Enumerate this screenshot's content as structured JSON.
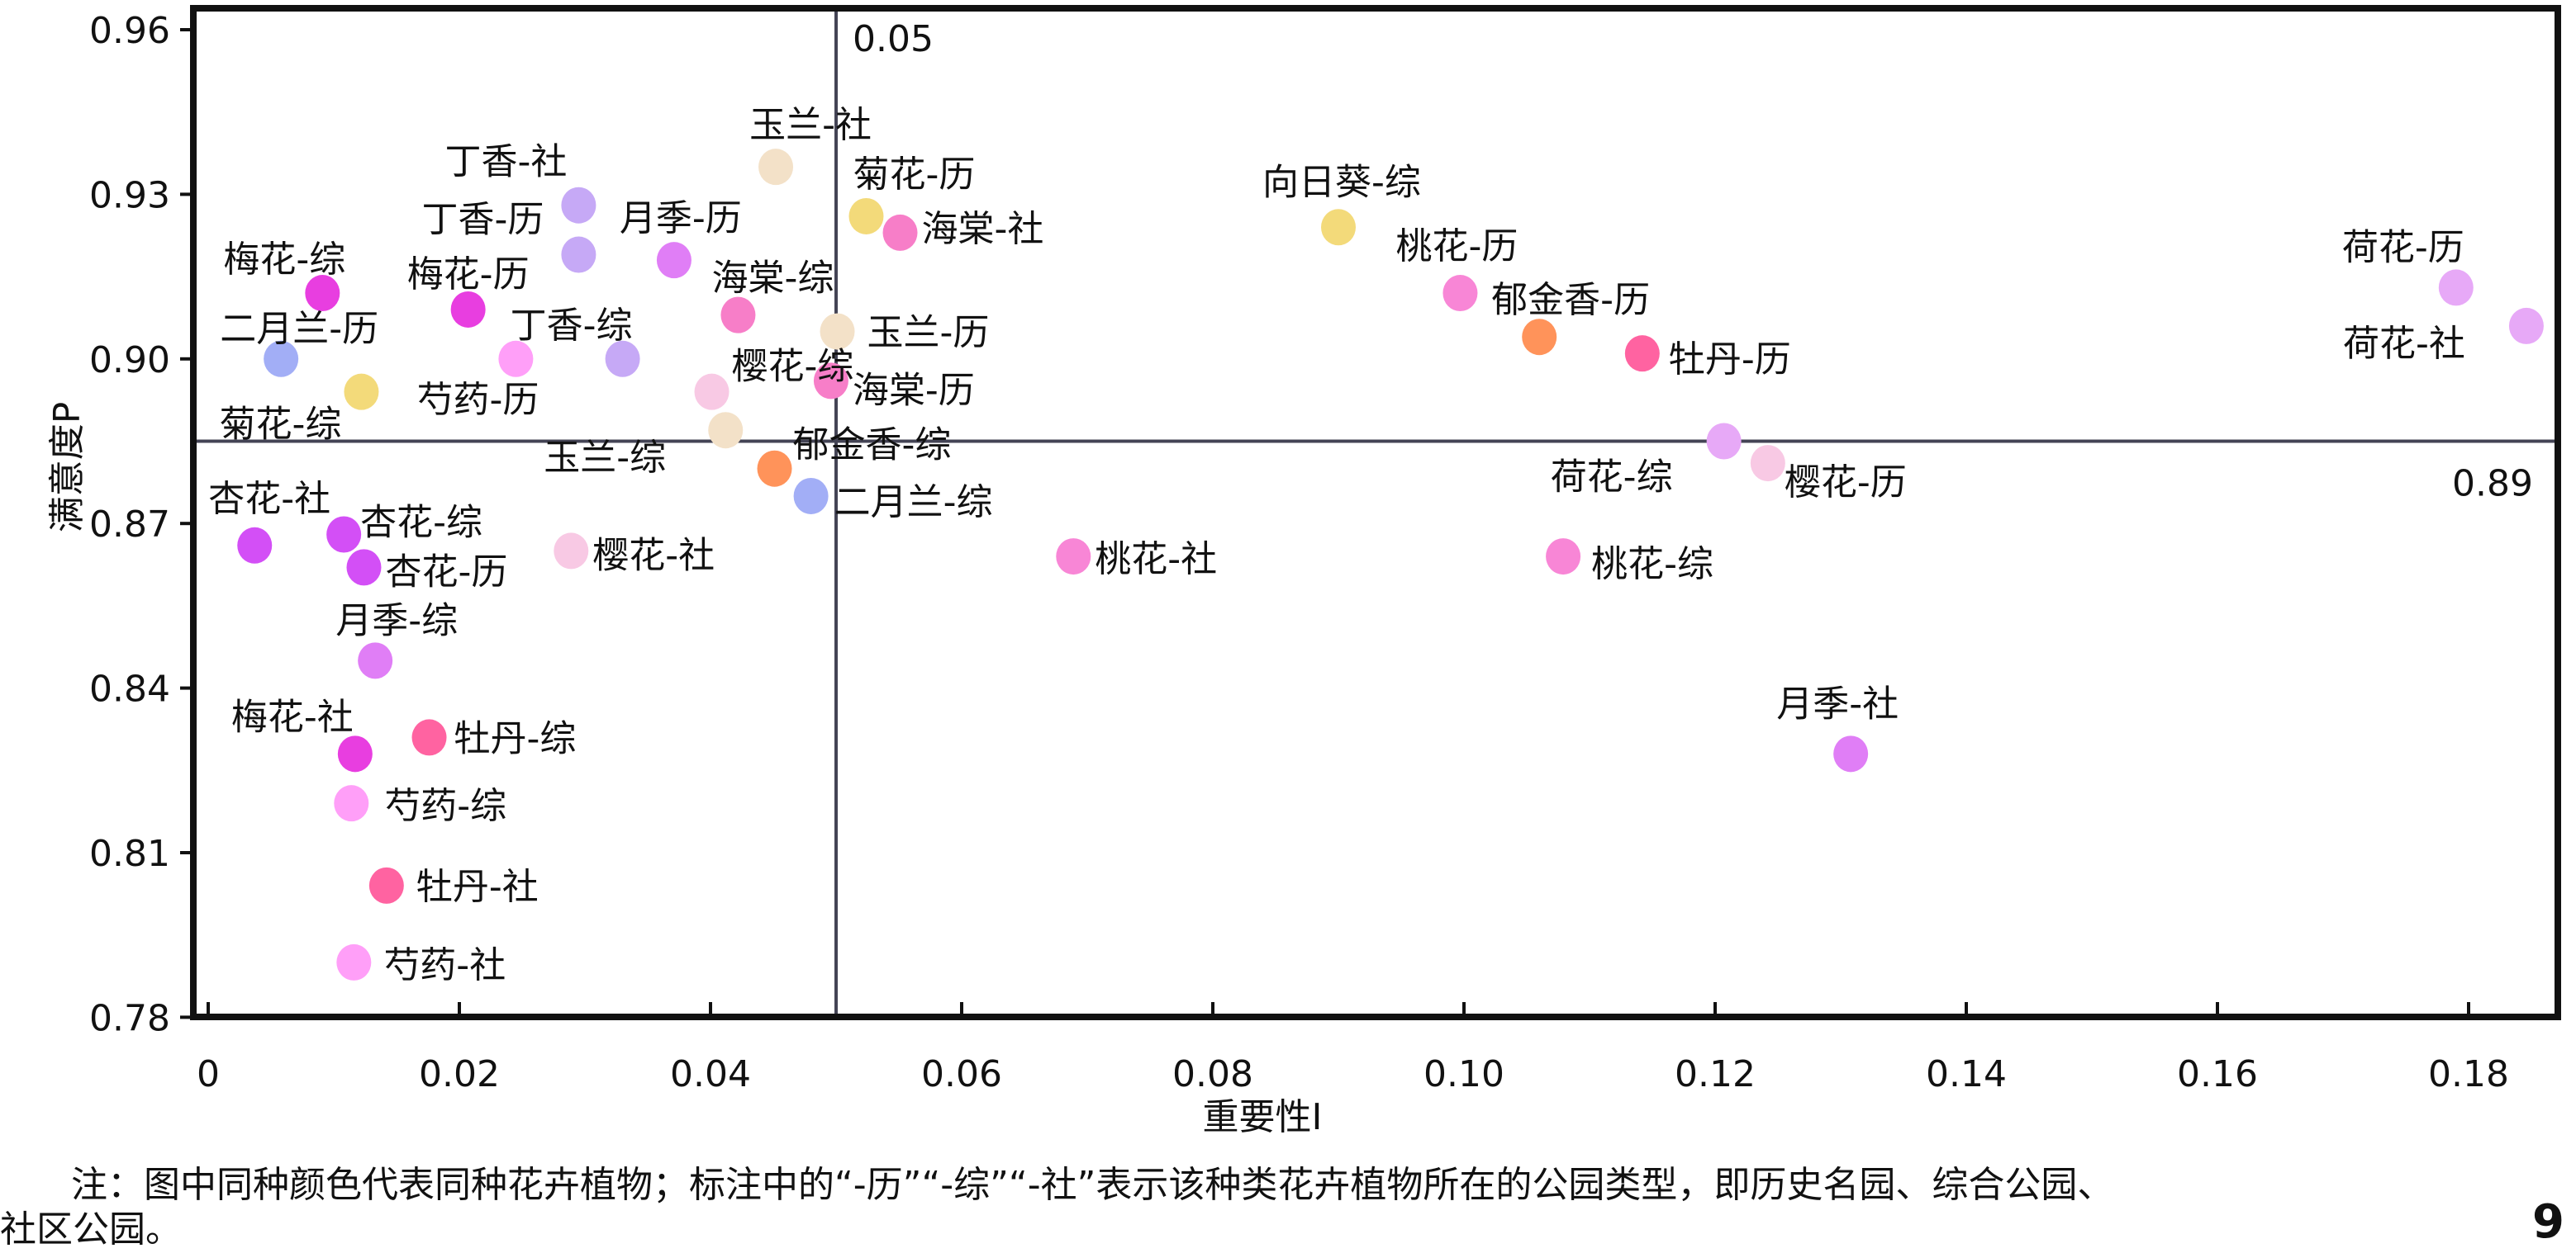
{
  "chart_data": {
    "type": "scatter",
    "title": "",
    "xlabel": "重要性I",
    "ylabel": "满意度P",
    "xlim": [
      0,
      0.185
    ],
    "ylim": [
      0.78,
      0.96
    ],
    "xticks": [
      "0",
      "0.02",
      "0.04",
      "0.06",
      "0.08",
      "0.10",
      "0.12",
      "0.14",
      "0.16",
      "0.18"
    ],
    "xtick_values": [
      0,
      0.02,
      0.04,
      0.06,
      0.08,
      0.1,
      0.12,
      0.14,
      0.16,
      0.18
    ],
    "yticks": [
      "0.78",
      "0.81",
      "0.84",
      "0.87",
      "0.90",
      "0.93",
      "0.96"
    ],
    "ytick_values": [
      0.78,
      0.81,
      0.84,
      0.87,
      0.9,
      0.93,
      0.96
    ],
    "grid": false,
    "reference_lines": {
      "vertical": {
        "value": 0.05,
        "label": "0.05"
      },
      "horizontal": {
        "value": 0.885,
        "label": "0.89"
      }
    },
    "colors": {
      "玉兰": "#f3e1c8",
      "丁香": "#c6a9f6",
      "月季": "#e07ef6",
      "梅花": "#e83ee0",
      "海棠": "#f77ec8",
      "二月兰": "#a2aef6",
      "芍药": "#ff9ff8",
      "菊花": "#f3da7a",
      "樱花": "#f8c9e4",
      "郁金香": "#ff935a",
      "杏花": "#d34ff6",
      "牡丹": "#ff63a1",
      "桃花": "#f886d6",
      "向日葵": "#f3da7a",
      "荷花": "#e7a9f7"
    },
    "points": [
      {
        "label": "玉兰-社",
        "plant": "玉兰",
        "x": 0.0452,
        "y": 0.935
      },
      {
        "label": "丁香-社",
        "plant": "丁香",
        "x": 0.0295,
        "y": 0.928
      },
      {
        "label": "丁香-历",
        "plant": "丁香",
        "x": 0.0295,
        "y": 0.919
      },
      {
        "label": "月季-历",
        "plant": "月季",
        "x": 0.0371,
        "y": 0.918
      },
      {
        "label": "梅花-综",
        "plant": "梅花",
        "x": 0.0091,
        "y": 0.912
      },
      {
        "label": "梅花-历",
        "plant": "梅花",
        "x": 0.0207,
        "y": 0.909
      },
      {
        "label": "海棠-综",
        "plant": "海棠",
        "x": 0.0422,
        "y": 0.908
      },
      {
        "label": "二月兰-历",
        "plant": "二月兰",
        "x": 0.0058,
        "y": 0.9
      },
      {
        "label": "丁香-综",
        "plant": "丁香",
        "x": 0.033,
        "y": 0.9
      },
      {
        "label": "樱花-综",
        "plant": "樱花",
        "x": 0.0401,
        "y": 0.894
      },
      {
        "label": "芍药-历",
        "plant": "芍药",
        "x": 0.0245,
        "y": 0.9
      },
      {
        "label": "菊花-综",
        "plant": "菊花",
        "x": 0.0122,
        "y": 0.894
      },
      {
        "label": "玉兰-综",
        "plant": "玉兰",
        "x": 0.0412,
        "y": 0.887
      },
      {
        "label": "菊花-历",
        "plant": "菊花",
        "x": 0.0524,
        "y": 0.926
      },
      {
        "label": "海棠-社",
        "plant": "海棠",
        "x": 0.0551,
        "y": 0.923
      },
      {
        "label": "玉兰-历",
        "plant": "玉兰",
        "x": 0.0501,
        "y": 0.905
      },
      {
        "label": "海棠-历",
        "plant": "海棠",
        "x": 0.0496,
        "y": 0.896
      },
      {
        "label": "郁金香-综",
        "plant": "郁金香",
        "x": 0.0451,
        "y": 0.88
      },
      {
        "label": "二月兰-综",
        "plant": "二月兰",
        "x": 0.048,
        "y": 0.875
      },
      {
        "label": "杏花-社",
        "plant": "杏花",
        "x": 0.0037,
        "y": 0.866
      },
      {
        "label": "杏花-综",
        "plant": "杏花",
        "x": 0.0108,
        "y": 0.868
      },
      {
        "label": "杏花-历",
        "plant": "杏花",
        "x": 0.0124,
        "y": 0.862
      },
      {
        "label": "樱花-社",
        "plant": "樱花",
        "x": 0.0289,
        "y": 0.865
      },
      {
        "label": "月季-综",
        "plant": "月季",
        "x": 0.0133,
        "y": 0.845
      },
      {
        "label": "梅花-社",
        "plant": "梅花",
        "x": 0.0117,
        "y": 0.828
      },
      {
        "label": "牡丹-综",
        "plant": "牡丹",
        "x": 0.0176,
        "y": 0.831
      },
      {
        "label": "芍药-综",
        "plant": "芍药",
        "x": 0.0114,
        "y": 0.819
      },
      {
        "label": "牡丹-社",
        "plant": "牡丹",
        "x": 0.0142,
        "y": 0.804
      },
      {
        "label": "芍药-社",
        "plant": "芍药",
        "x": 0.0116,
        "y": 0.79
      },
      {
        "label": "桃花-社",
        "plant": "桃花",
        "x": 0.0689,
        "y": 0.864
      },
      {
        "label": "向日葵-综",
        "plant": "向日葵",
        "x": 0.09,
        "y": 0.924
      },
      {
        "label": "桃花-历",
        "plant": "桃花",
        "x": 0.0997,
        "y": 0.912
      },
      {
        "label": "郁金香-历",
        "plant": "郁金香",
        "x": 0.106,
        "y": 0.904
      },
      {
        "label": "牡丹-历",
        "plant": "牡丹",
        "x": 0.1142,
        "y": 0.901
      },
      {
        "label": "荷花-综",
        "plant": "荷花",
        "x": 0.1207,
        "y": 0.885
      },
      {
        "label": "樱花-历",
        "plant": "樱花",
        "x": 0.1242,
        "y": 0.881
      },
      {
        "label": "桃花-综",
        "plant": "桃花",
        "x": 0.1079,
        "y": 0.864
      },
      {
        "label": "月季-社",
        "plant": "月季",
        "x": 0.1308,
        "y": 0.828
      },
      {
        "label": "荷花-历",
        "plant": "荷花",
        "x": 0.179,
        "y": 0.913
      },
      {
        "label": "荷花-社",
        "plant": "荷花",
        "x": 0.1846,
        "y": 0.906
      }
    ]
  },
  "footnote": {
    "line1": "注：图中同种颜色代表同种花卉植物；标注中的“-历”“-综”“-社”表示该种类花卉植物所在的公园类型，即历史名园、综合公园、",
    "line2": "社区公园。"
  },
  "page_number": "9"
}
